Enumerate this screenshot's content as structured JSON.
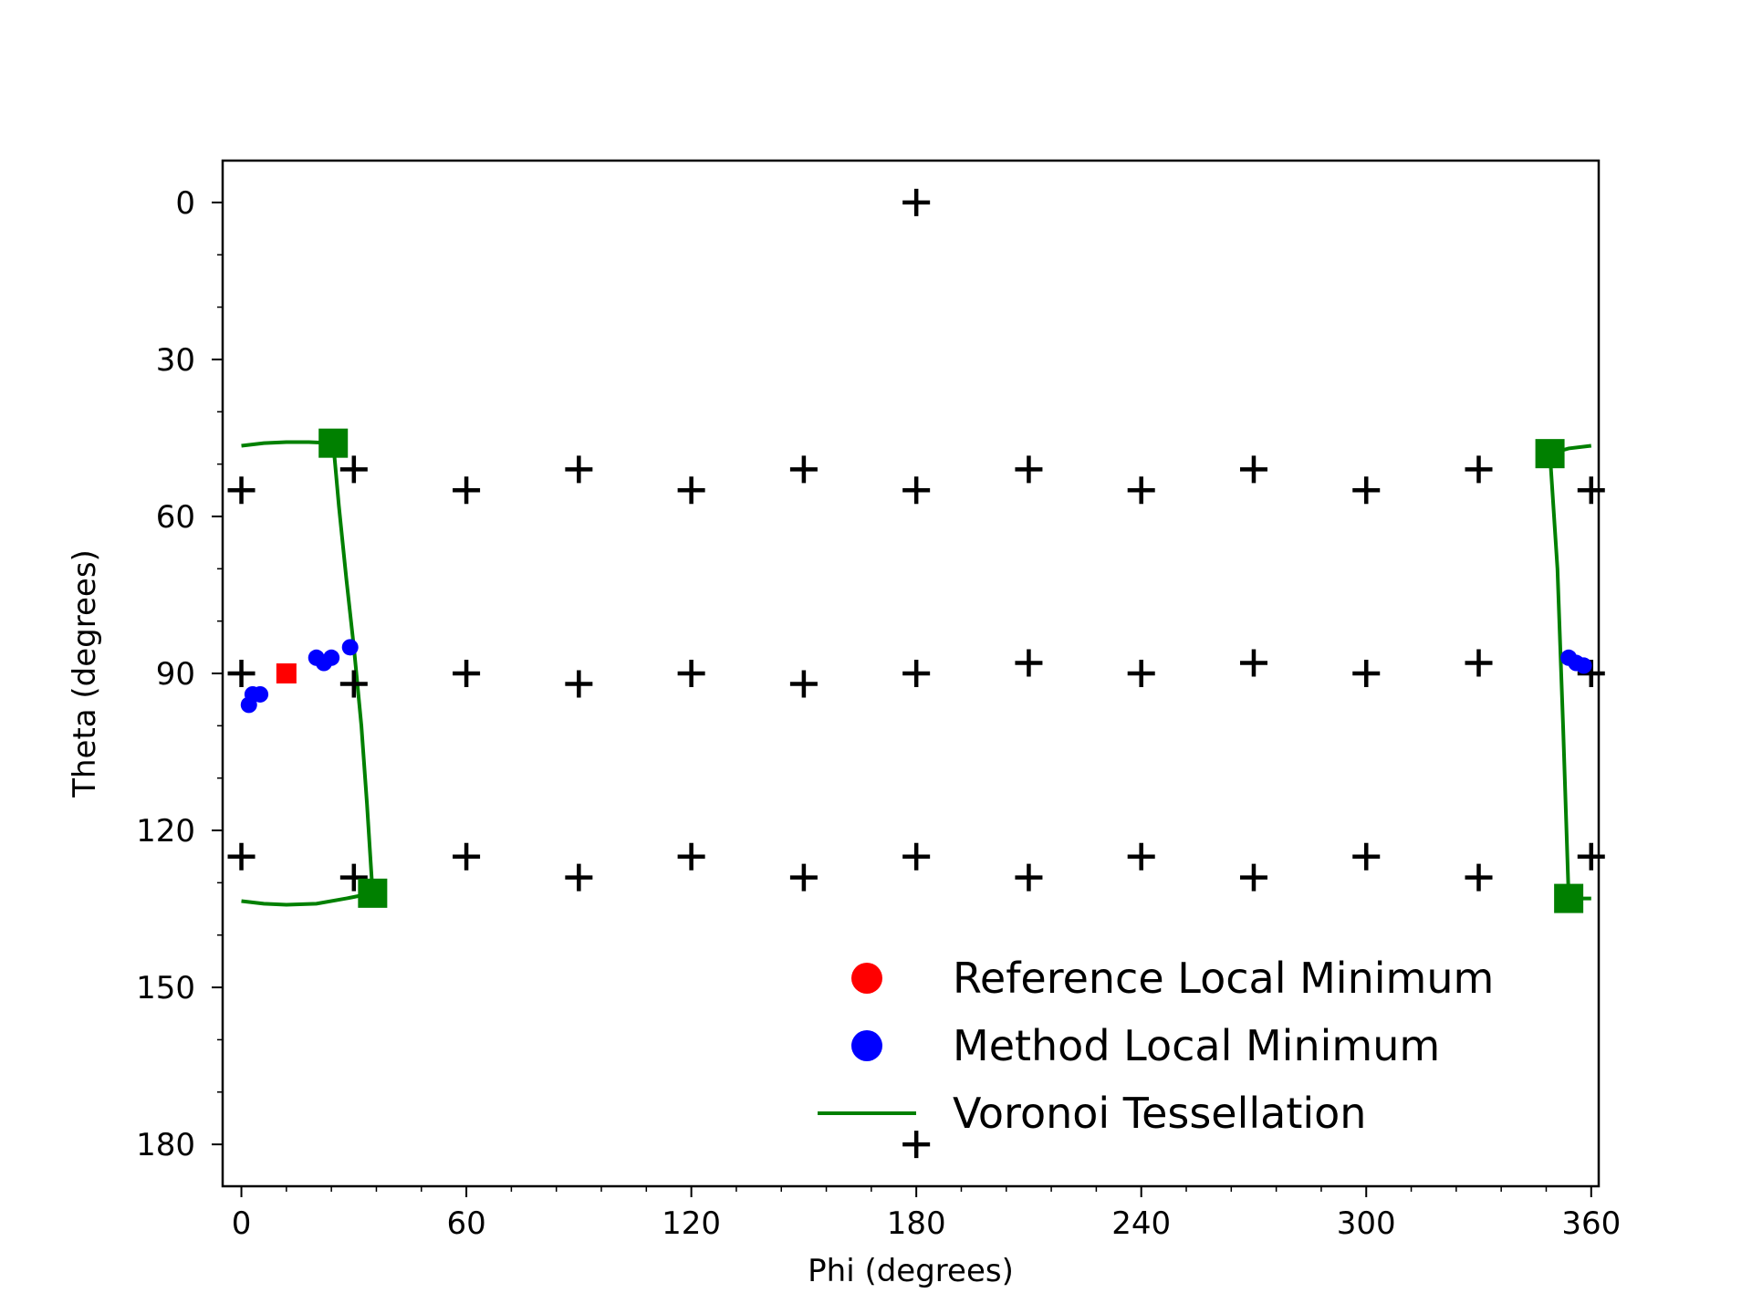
{
  "chart_data": {
    "type": "scatter",
    "title": "",
    "xlabel": "Phi (degrees)",
    "ylabel": "Theta (degrees)",
    "xlim": [
      -5,
      362
    ],
    "ylim": [
      -8,
      188
    ],
    "y_inverted": true,
    "grid": false,
    "legend_position": "bottom-right",
    "x_ticks": [
      0,
      60,
      120,
      180,
      240,
      300,
      360
    ],
    "y_ticks": [
      0,
      30,
      60,
      90,
      120,
      150,
      180
    ],
    "x_minor_step": 12,
    "y_minor_step": 10,
    "colors": {
      "grid_points": "#000000",
      "reference": "#ff0000",
      "method": "#0000ff",
      "voronoi": "#008000"
    },
    "grid_points": [
      {
        "phi": 180,
        "theta": 0
      },
      {
        "phi": 0,
        "theta": 55
      },
      {
        "phi": 30,
        "theta": 51
      },
      {
        "phi": 60,
        "theta": 55
      },
      {
        "phi": 90,
        "theta": 51
      },
      {
        "phi": 120,
        "theta": 55
      },
      {
        "phi": 150,
        "theta": 51
      },
      {
        "phi": 180,
        "theta": 55
      },
      {
        "phi": 210,
        "theta": 51
      },
      {
        "phi": 240,
        "theta": 55
      },
      {
        "phi": 270,
        "theta": 51
      },
      {
        "phi": 300,
        "theta": 55
      },
      {
        "phi": 330,
        "theta": 51
      },
      {
        "phi": 360,
        "theta": 55
      },
      {
        "phi": 0,
        "theta": 90
      },
      {
        "phi": 30,
        "theta": 92
      },
      {
        "phi": 60,
        "theta": 90
      },
      {
        "phi": 90,
        "theta": 92
      },
      {
        "phi": 120,
        "theta": 90
      },
      {
        "phi": 150,
        "theta": 92
      },
      {
        "phi": 180,
        "theta": 90
      },
      {
        "phi": 210,
        "theta": 88
      },
      {
        "phi": 240,
        "theta": 90
      },
      {
        "phi": 270,
        "theta": 88
      },
      {
        "phi": 300,
        "theta": 90
      },
      {
        "phi": 330,
        "theta": 88
      },
      {
        "phi": 360,
        "theta": 90
      },
      {
        "phi": 0,
        "theta": 125
      },
      {
        "phi": 30,
        "theta": 129
      },
      {
        "phi": 60,
        "theta": 125
      },
      {
        "phi": 90,
        "theta": 129
      },
      {
        "phi": 120,
        "theta": 125
      },
      {
        "phi": 150,
        "theta": 129
      },
      {
        "phi": 180,
        "theta": 125
      },
      {
        "phi": 210,
        "theta": 129
      },
      {
        "phi": 240,
        "theta": 125
      },
      {
        "phi": 270,
        "theta": 129
      },
      {
        "phi": 300,
        "theta": 125
      },
      {
        "phi": 330,
        "theta": 129
      },
      {
        "phi": 360,
        "theta": 125
      },
      {
        "phi": 180,
        "theta": 180
      }
    ],
    "reference_minimum": [
      {
        "phi": 12,
        "theta": 90
      }
    ],
    "method_minima": [
      {
        "phi": 2,
        "theta": 96
      },
      {
        "phi": 3,
        "theta": 94
      },
      {
        "phi": 5,
        "theta": 94
      },
      {
        "phi": 20,
        "theta": 87
      },
      {
        "phi": 22,
        "theta": 88
      },
      {
        "phi": 24,
        "theta": 87
      },
      {
        "phi": 29,
        "theta": 85
      },
      {
        "phi": 354,
        "theta": 87
      },
      {
        "phi": 356,
        "theta": 88
      },
      {
        "phi": 358,
        "theta": 88.5
      }
    ],
    "voronoi_vertices": [
      {
        "phi": 24.5,
        "theta": 46
      },
      {
        "phi": 35,
        "theta": 132
      },
      {
        "phi": 349,
        "theta": 48
      },
      {
        "phi": 354,
        "theta": 133
      }
    ],
    "voronoi_lines": [
      [
        {
          "phi": 0,
          "theta": 46.5
        },
        {
          "phi": 6,
          "theta": 46
        },
        {
          "phi": 12,
          "theta": 45.8
        },
        {
          "phi": 18,
          "theta": 45.8
        },
        {
          "phi": 24.5,
          "theta": 46
        }
      ],
      [
        {
          "phi": 24.5,
          "theta": 46
        },
        {
          "phi": 26,
          "theta": 58
        },
        {
          "phi": 28,
          "theta": 72
        },
        {
          "phi": 30,
          "theta": 85
        },
        {
          "phi": 32,
          "theta": 100
        },
        {
          "phi": 33.5,
          "theta": 115
        },
        {
          "phi": 35,
          "theta": 132
        }
      ],
      [
        {
          "phi": 0,
          "theta": 133.5
        },
        {
          "phi": 6,
          "theta": 134
        },
        {
          "phi": 12,
          "theta": 134.2
        },
        {
          "phi": 20,
          "theta": 134
        },
        {
          "phi": 28,
          "theta": 133
        },
        {
          "phi": 35,
          "theta": 132
        }
      ],
      [
        {
          "phi": 349,
          "theta": 48
        },
        {
          "phi": 351,
          "theta": 70
        },
        {
          "phi": 352.5,
          "theta": 100
        },
        {
          "phi": 354,
          "theta": 133
        }
      ],
      [
        {
          "phi": 349,
          "theta": 48
        },
        {
          "phi": 354,
          "theta": 47
        },
        {
          "phi": 360,
          "theta": 46.5
        }
      ],
      [
        {
          "phi": 354,
          "theta": 133
        },
        {
          "phi": 360,
          "theta": 133
        }
      ]
    ],
    "legend": [
      {
        "label": "Reference Local Minimum",
        "kind": "circle",
        "color": "#ff0000"
      },
      {
        "label": "Method Local Minimum",
        "kind": "circle",
        "color": "#0000ff"
      },
      {
        "label": "Voronoi Tessellation",
        "kind": "line",
        "color": "#008000"
      }
    ]
  }
}
